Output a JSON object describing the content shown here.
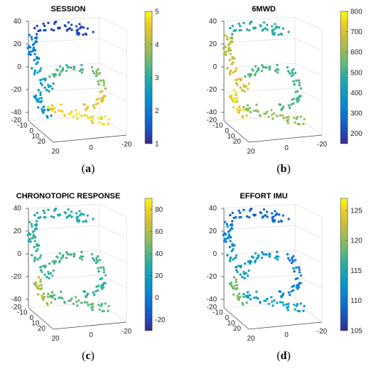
{
  "chart_data": [
    {
      "type": "scatter",
      "title": "SESSION",
      "caption_letter": "a",
      "colorbar": {
        "min": 1,
        "max": 5,
        "ticks": [
          "1",
          "2",
          "3",
          "4",
          "5"
        ]
      },
      "z_ticks": [
        "40",
        "20",
        "0",
        "-20",
        "-40"
      ],
      "x_ticks": [
        "-20",
        "-10",
        "0",
        "10",
        "20"
      ],
      "y_ticks": [
        "20",
        "0",
        "-20"
      ],
      "color_map": [
        {
          "region": "top-arc",
          "value": 1.3
        },
        {
          "region": "left-upper",
          "value": 2.0
        },
        {
          "region": "left-mid",
          "value": 2.6
        },
        {
          "region": "mid-band",
          "value": 3.3
        },
        {
          "region": "right-mid",
          "value": 3.6
        },
        {
          "region": "right-lower",
          "value": 4.5
        },
        {
          "region": "bottom-arc",
          "value": 4.7
        },
        {
          "region": "left-lower",
          "value": 2.4
        }
      ]
    },
    {
      "type": "scatter",
      "title": "6MWD",
      "caption_letter": "b",
      "colorbar": {
        "min": 150,
        "max": 800,
        "ticks": [
          "200",
          "300",
          "400",
          "500",
          "600",
          "700",
          "800"
        ]
      },
      "z_ticks": [
        "40",
        "20",
        "0",
        "-20",
        "-40"
      ],
      "x_ticks": [
        "-20",
        "-10",
        "0",
        "10",
        "20"
      ],
      "y_ticks": [
        "20",
        "0",
        "-20"
      ],
      "color_map": [
        {
          "region": "top-arc",
          "value": 470
        },
        {
          "region": "left-upper",
          "value": 640
        },
        {
          "region": "left-mid",
          "value": 680
        },
        {
          "region": "mid-band",
          "value": 530
        },
        {
          "region": "right-mid",
          "value": 500
        },
        {
          "region": "right-lower",
          "value": 520
        },
        {
          "region": "bottom-arc",
          "value": 600
        },
        {
          "region": "left-lower",
          "value": 740
        }
      ]
    },
    {
      "type": "scatter",
      "title": "CHRONOTOPIC RESPONSE",
      "caption_letter": "c",
      "colorbar": {
        "min": -30,
        "max": 90,
        "ticks": [
          "-20",
          "0",
          "20",
          "40",
          "60",
          "80"
        ]
      },
      "z_ticks": [
        "40",
        "20",
        "0",
        "-20",
        "-40"
      ],
      "x_ticks": [
        "-20",
        "-10",
        "0",
        "10",
        "20"
      ],
      "y_ticks": [
        "20",
        "0",
        "-20"
      ],
      "color_map": [
        {
          "region": "top-arc",
          "value": 28
        },
        {
          "region": "left-upper",
          "value": 30
        },
        {
          "region": "left-mid",
          "value": 34
        },
        {
          "region": "mid-band",
          "value": 38
        },
        {
          "region": "right-mid",
          "value": 36
        },
        {
          "region": "right-lower",
          "value": 32
        },
        {
          "region": "bottom-arc",
          "value": 40
        },
        {
          "region": "left-lower",
          "value": 58
        }
      ]
    },
    {
      "type": "scatter",
      "title": "EFFORT IMU",
      "caption_letter": "d",
      "colorbar": {
        "min": 105,
        "max": 127,
        "ticks": [
          "105",
          "110",
          "115",
          "120",
          "125"
        ]
      },
      "z_ticks": [
        "40",
        "20",
        "0",
        "-20",
        "-40"
      ],
      "x_ticks": [
        "-20",
        "-10",
        "0",
        "10",
        "20"
      ],
      "y_ticks": [
        "20",
        "0",
        "-20"
      ],
      "color_map": [
        {
          "region": "top-arc",
          "value": 109
        },
        {
          "region": "left-upper",
          "value": 111
        },
        {
          "region": "left-mid",
          "value": 114
        },
        {
          "region": "mid-band",
          "value": 113
        },
        {
          "region": "right-mid",
          "value": 110
        },
        {
          "region": "right-lower",
          "value": 111
        },
        {
          "region": "bottom-arc",
          "value": 114
        },
        {
          "region": "left-lower",
          "value": 119
        }
      ]
    }
  ]
}
